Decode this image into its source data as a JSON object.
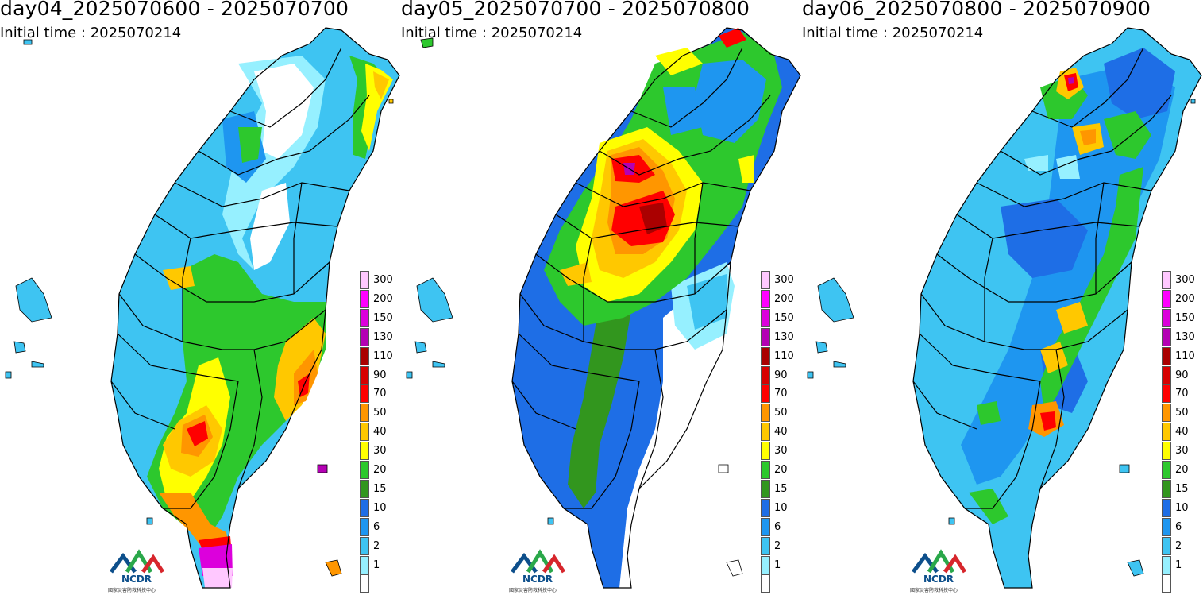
{
  "panels": [
    {
      "title": "day04_2025070600 - 2025070700",
      "initial_time": "Initial time : 2025070214",
      "dominant_colors": [
        "#3ec4f2",
        "#1e96f0",
        "#2dc82d",
        "#ffc800",
        "#ff0000"
      ]
    },
    {
      "title": "day05_2025070700 - 2025070800",
      "initial_time": "Initial time : 2025070214",
      "dominant_colors": [
        "#1e6ee6",
        "#2dc82d",
        "#ffc800",
        "#ff0000",
        "#ffffff"
      ]
    },
    {
      "title": "day06_2025070800 - 2025070900",
      "initial_time": "Initial time : 2025070214",
      "dominant_colors": [
        "#3ec4f2",
        "#1e96f0",
        "#1e6ee6",
        "#2dc82d",
        "#ff0000"
      ]
    }
  ],
  "legend": {
    "levels": [
      "300",
      "200",
      "150",
      "130",
      "110",
      "90",
      "70",
      "50",
      "40",
      "30",
      "20",
      "15",
      "10",
      "6",
      "2",
      "1"
    ],
    "colors": [
      "#ffc8ff",
      "#ff00ff",
      "#dc00dc",
      "#b400b4",
      "#aa0000",
      "#d70000",
      "#ff0000",
      "#ff9600",
      "#ffc800",
      "#ffff00",
      "#2dc82d",
      "#32961e",
      "#1e6ee6",
      "#1e96f0",
      "#3ec4f2",
      "#96f0ff"
    ]
  },
  "logo": {
    "text": "NCDR",
    "subtitle": "國家災害防救科技中心"
  }
}
